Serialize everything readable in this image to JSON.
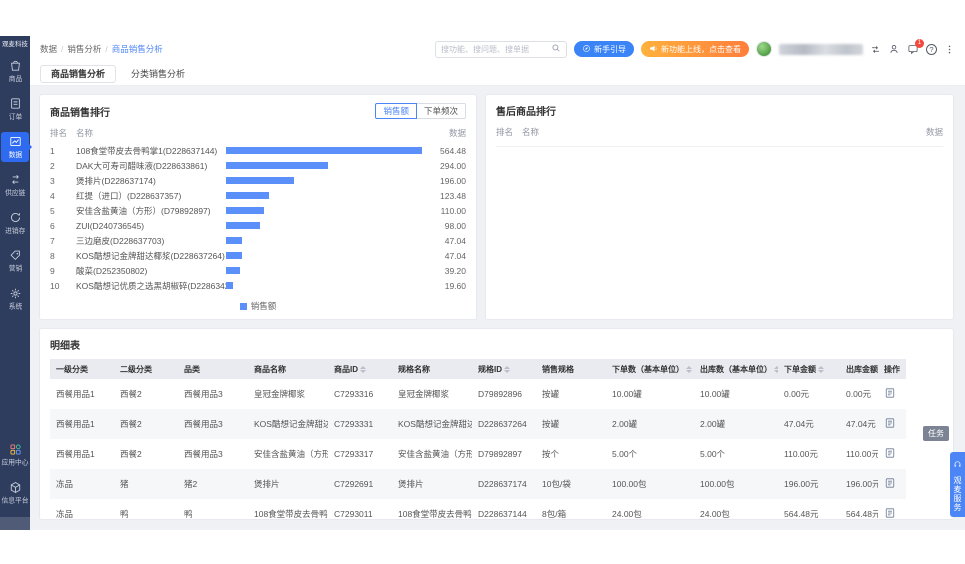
{
  "app": {
    "logo_text": "观麦科技"
  },
  "sidebar": {
    "items": [
      {
        "icon": "goods-icon",
        "label": "商品",
        "active": false
      },
      {
        "icon": "order-icon",
        "label": "订单",
        "active": false
      },
      {
        "icon": "data-icon",
        "label": "数据",
        "active": true
      },
      {
        "icon": "supply-chain-icon",
        "label": "供应链",
        "active": false
      },
      {
        "icon": "inventory-icon",
        "label": "进销存",
        "active": false
      },
      {
        "icon": "marketing-icon",
        "label": "营销",
        "active": false
      },
      {
        "icon": "system-icon",
        "label": "系统",
        "active": false
      }
    ],
    "bottom_items": [
      {
        "icon": "app-center-icon",
        "label": "应用中心",
        "active": false
      },
      {
        "icon": "info-platform-icon",
        "label": "信息平台",
        "active": false
      }
    ]
  },
  "breadcrumb": [
    "数据",
    "销售分析",
    "商品销售分析"
  ],
  "topbar": {
    "search_placeholder": "搜功能、搜问题、搜单据",
    "guide_button": "新手引导",
    "announcement_button": "新功能上线，点击查看",
    "message_badge": "1"
  },
  "tabs": [
    {
      "label": "商品销售分析",
      "active": true
    },
    {
      "label": "分类销售分析",
      "active": false
    }
  ],
  "sales_ranking": {
    "title": "商品销售排行",
    "toggle_options": [
      "销售额",
      "下单频次"
    ],
    "active_toggle": 0,
    "rank_header": "排名",
    "name_header": "名称",
    "value_header": "数据",
    "legend": "销售额"
  },
  "aftersales_ranking": {
    "title": "售后商品排行",
    "rank_header": "排名",
    "name_header": "名称",
    "value_header": "数据"
  },
  "chart_data": {
    "type": "bar",
    "orientation": "horizontal",
    "title": "商品销售排行",
    "legend": [
      "销售额"
    ],
    "legend_position": "bottom",
    "bar_color": "#5b8ff9",
    "xlim": [
      0,
      564.48
    ],
    "categories": [
      "108食堂带皮去骨鸭掌1(D228637144)",
      "DAK大可寿司醋味液(D228633861)",
      "煲排片(D228637174)",
      "红提（进口）(D228637357)",
      "安佳含盐黄油（方形）(D79892897)",
      "ZUI(D240736545)",
      "三边磨皮(D228637703)",
      "KOS酷想记金牌甜达椰浆(D228637264)",
      "酸菜(D252350802)",
      "KOS酷想记优质之选黑胡椒碎(D228634296)"
    ],
    "values": [
      564.48,
      294.0,
      196.0,
      123.48,
      110.0,
      98.0,
      47.04,
      47.04,
      39.2,
      19.6
    ],
    "value_labels": [
      "564.48",
      "294.00",
      "196.00",
      "123.48",
      "110.00",
      "98.00",
      "47.04",
      "47.04",
      "39.20",
      "19.60"
    ]
  },
  "detail_table": {
    "title": "明细表",
    "columns": [
      {
        "label": "一级分类",
        "sortable": false
      },
      {
        "label": "二级分类",
        "sortable": false
      },
      {
        "label": "品类",
        "sortable": false
      },
      {
        "label": "商品名称",
        "sortable": false
      },
      {
        "label": "商品ID",
        "sortable": true
      },
      {
        "label": "规格名称",
        "sortable": false
      },
      {
        "label": "规格ID",
        "sortable": true
      },
      {
        "label": "销售规格",
        "sortable": false
      },
      {
        "label": "下单数（基本单位）",
        "sortable": true
      },
      {
        "label": "出库数（基本单位）",
        "sortable": true
      },
      {
        "label": "下单金额",
        "sortable": true
      },
      {
        "label": "出库金额",
        "sortable": true
      },
      {
        "label": "操作",
        "sortable": false
      }
    ],
    "rows": [
      [
        "西餐用品1",
        "西餐2",
        "西餐用品3",
        "皇冠金牌椰浆",
        "C7293316",
        "皇冠金牌椰浆",
        "D79892896",
        "按罐",
        "10.00罐",
        "10.00罐",
        "0.00元",
        "0.00元"
      ],
      [
        "西餐用品1",
        "西餐2",
        "西餐用品3",
        "KOS酷想记金牌甜达椰浆",
        "C7293331",
        "KOS酷想记金牌甜达椰浆",
        "D228637264",
        "按罐",
        "2.00罐",
        "2.00罐",
        "47.04元",
        "47.04元"
      ],
      [
        "西餐用品1",
        "西餐2",
        "西餐用品3",
        "安佳含盐黄油（方形）",
        "C7293317",
        "安佳含盐黄油（方形）",
        "D79892897",
        "按个",
        "5.00个",
        "5.00个",
        "110.00元",
        "110.00元"
      ],
      [
        "冻品",
        "猪",
        "猪2",
        "煲排片",
        "C7292691",
        "煲排片",
        "D228637174",
        "10包/袋",
        "100.00包",
        "100.00包",
        "196.00元",
        "196.00元"
      ],
      [
        "冻品",
        "鸭",
        "鸭",
        "108食堂带皮去骨鸭掌",
        "C7293011",
        "108食堂带皮去骨鸭掌1",
        "D228637144",
        "8包/箱",
        "24.00包",
        "24.00包",
        "564.48元",
        "564.48元"
      ]
    ]
  },
  "floating": {
    "task_tag": "任务",
    "service_button": "观麦服务"
  },
  "colors": {
    "sidebar_bg": "#2e3c5e",
    "active_nav_blue": "#2e6bf0",
    "bar_blue": "#5b8ff9",
    "accent_blue": "#4c86f6",
    "announcement_orange": "#ff8f3c",
    "table_header_bg": "#e9ebf0"
  }
}
